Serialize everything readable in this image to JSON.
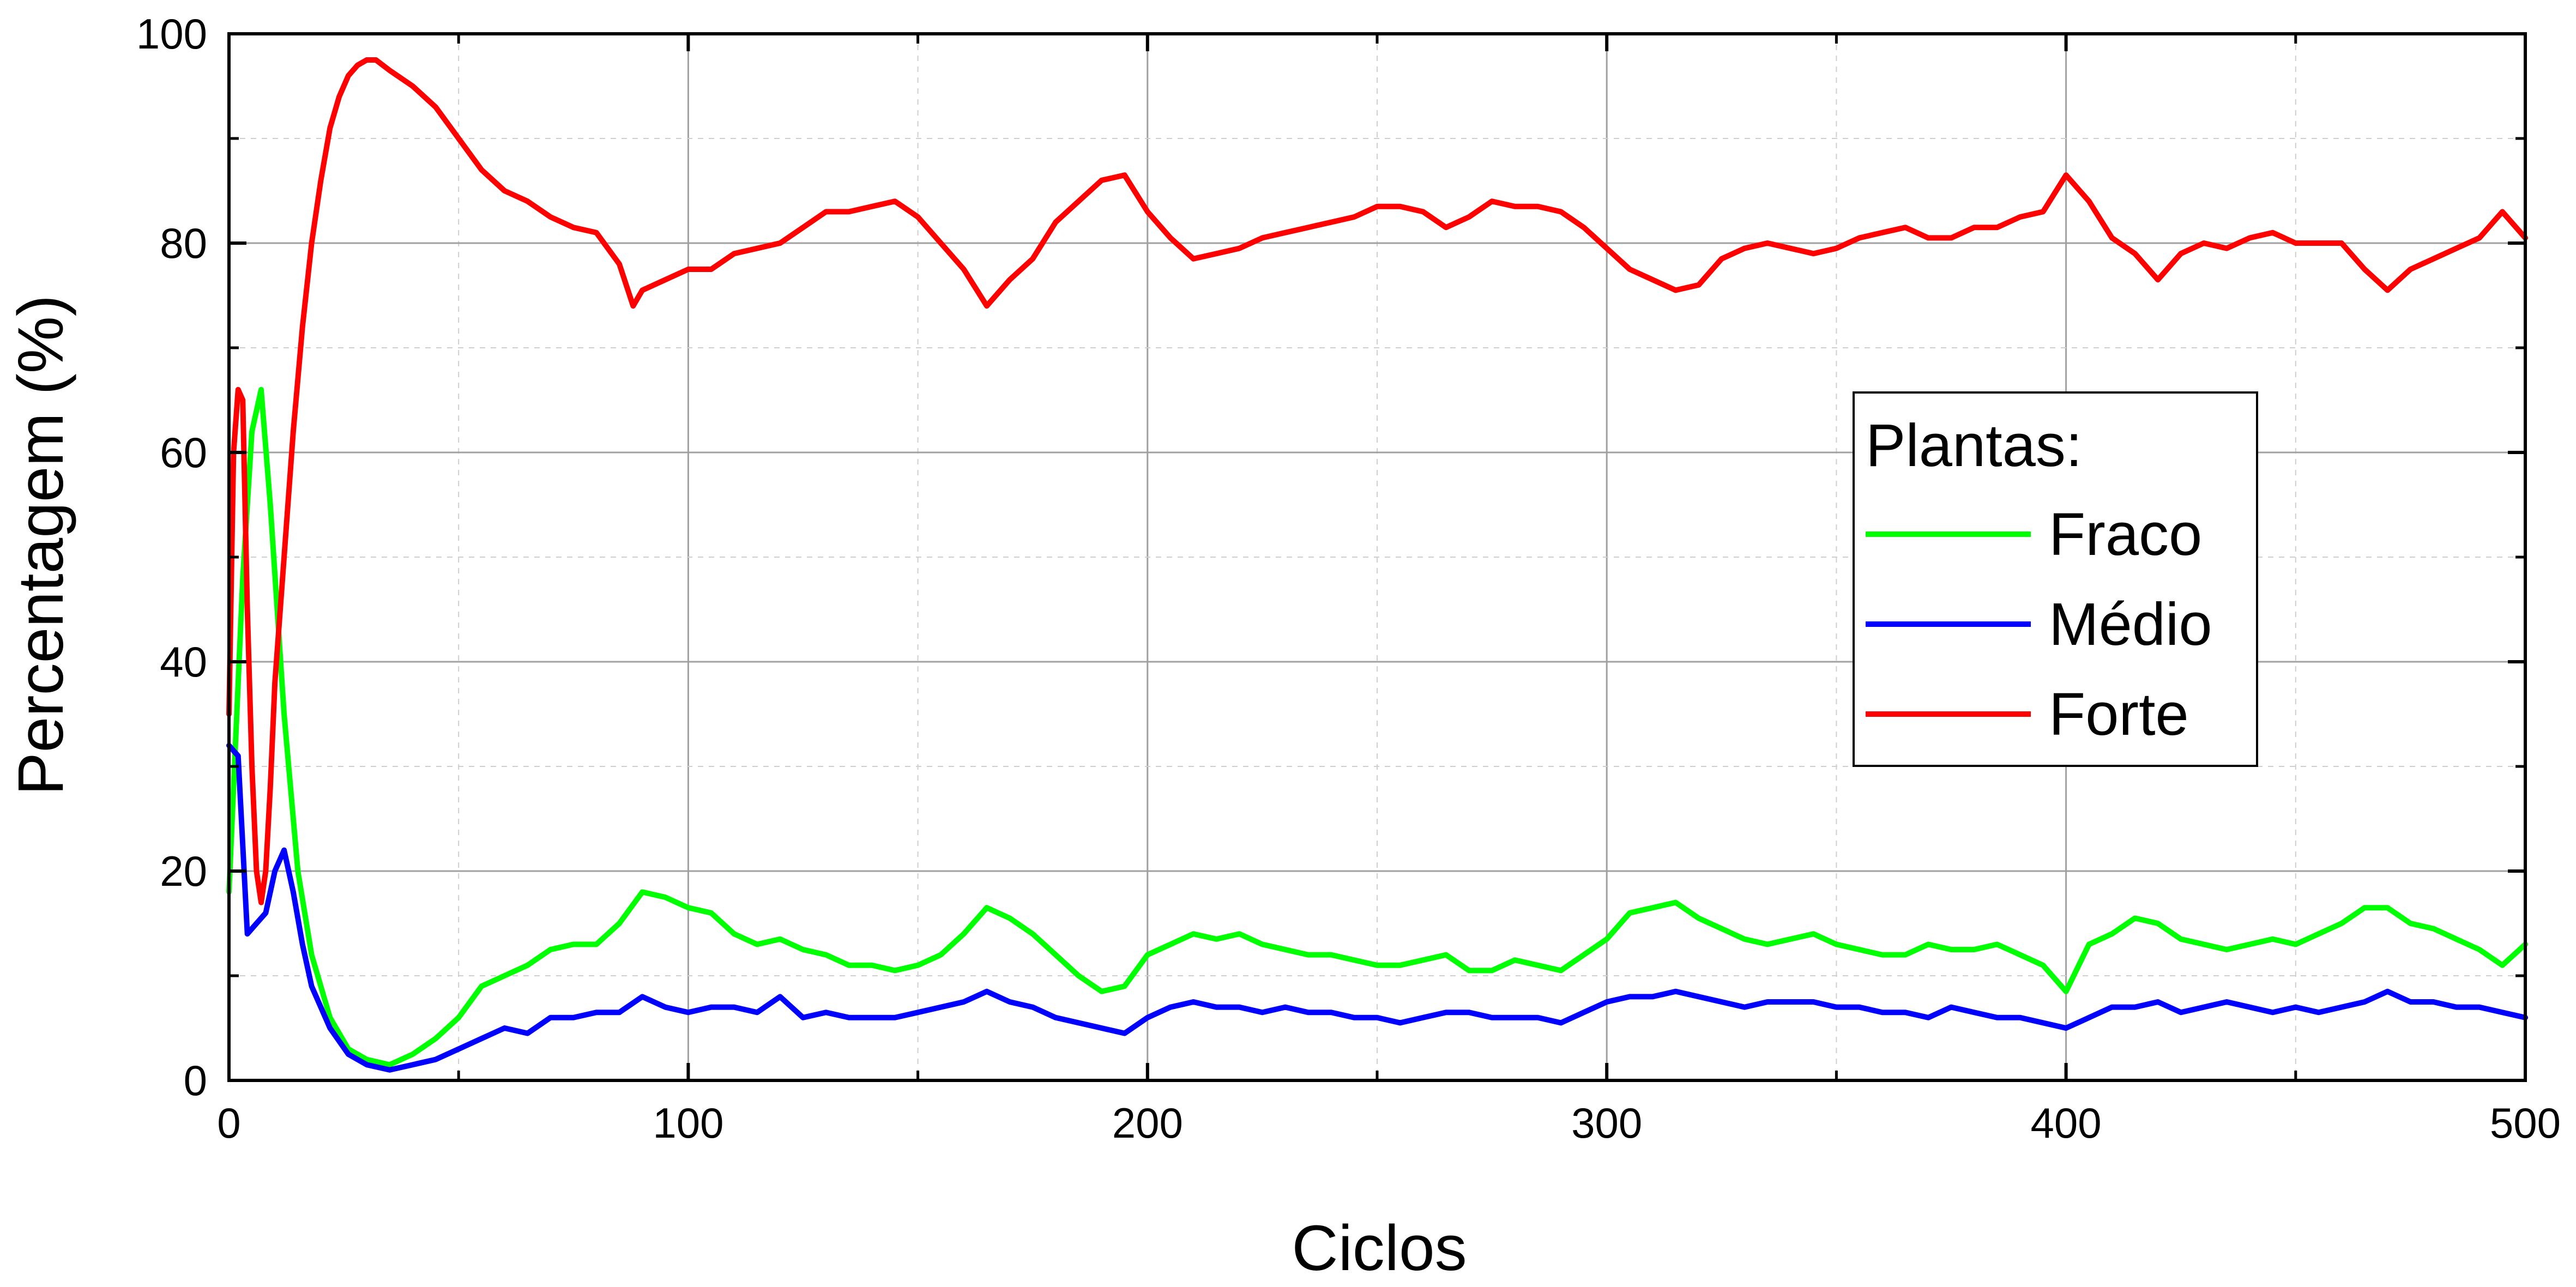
{
  "chart_data": {
    "type": "line",
    "xlabel": "Ciclos",
    "ylabel": "Percentagem (%)",
    "xlim": [
      0,
      500
    ],
    "ylim": [
      0,
      100
    ],
    "x_ticks": [
      0,
      100,
      200,
      300,
      400,
      500
    ],
    "y_ticks": [
      0,
      20,
      40,
      60,
      80,
      100
    ],
    "grid": true,
    "legend": {
      "title": "Plantas:",
      "placement": "right-center"
    },
    "series": [
      {
        "name": "Fraco",
        "color": "#00ff00",
        "x": [
          0,
          3,
          5,
          7,
          9,
          12,
          15,
          18,
          22,
          26,
          30,
          35,
          40,
          45,
          50,
          55,
          60,
          65,
          70,
          75,
          80,
          85,
          90,
          95,
          100,
          105,
          110,
          115,
          120,
          125,
          130,
          135,
          140,
          145,
          150,
          155,
          160,
          165,
          170,
          175,
          180,
          185,
          190,
          195,
          200,
          205,
          210,
          215,
          220,
          225,
          230,
          235,
          240,
          245,
          250,
          255,
          260,
          265,
          270,
          275,
          280,
          285,
          290,
          295,
          300,
          305,
          310,
          315,
          320,
          325,
          330,
          335,
          340,
          345,
          350,
          355,
          360,
          365,
          370,
          375,
          380,
          385,
          390,
          395,
          400,
          405,
          410,
          415,
          420,
          425,
          430,
          435,
          440,
          445,
          450,
          455,
          460,
          465,
          470,
          475,
          480,
          485,
          490,
          495,
          500
        ],
        "y": [
          18,
          48,
          62,
          66,
          55,
          35,
          20,
          12,
          6,
          3,
          2,
          1.5,
          2.5,
          4,
          6,
          9,
          10,
          11,
          12.5,
          13,
          13,
          15,
          18,
          17.5,
          16.5,
          16,
          14,
          13,
          13.5,
          12.5,
          12,
          11,
          11,
          10.5,
          11,
          12,
          14,
          16.5,
          15.5,
          14,
          12,
          10,
          8.5,
          9,
          12,
          13,
          14,
          13.5,
          14,
          13,
          12.5,
          12,
          12,
          11.5,
          11,
          11,
          11.5,
          12,
          10.5,
          10.5,
          11.5,
          11,
          10.5,
          12,
          13.5,
          16,
          16.5,
          17,
          15.5,
          14.5,
          13.5,
          13,
          13.5,
          14,
          13,
          12.5,
          12,
          12,
          13,
          12.5,
          12.5,
          13,
          12,
          11,
          8.5,
          13,
          14,
          15.5,
          15,
          13.5,
          13,
          12.5,
          13,
          13.5,
          13,
          14,
          15,
          16.5,
          16.5,
          15,
          14.5,
          13.5,
          12.5,
          11,
          13
        ]
      },
      {
        "name": "Médio",
        "color": "#0000ff",
        "x": [
          0,
          2,
          4,
          6,
          8,
          10,
          12,
          14,
          16,
          18,
          22,
          26,
          30,
          35,
          40,
          45,
          50,
          55,
          60,
          65,
          70,
          75,
          80,
          85,
          90,
          95,
          100,
          105,
          110,
          115,
          120,
          125,
          130,
          135,
          140,
          145,
          150,
          155,
          160,
          165,
          170,
          175,
          180,
          185,
          190,
          195,
          200,
          205,
          210,
          215,
          220,
          225,
          230,
          235,
          240,
          245,
          250,
          255,
          260,
          265,
          270,
          275,
          280,
          285,
          290,
          295,
          300,
          305,
          310,
          315,
          320,
          325,
          330,
          335,
          340,
          345,
          350,
          355,
          360,
          365,
          370,
          375,
          380,
          385,
          390,
          395,
          400,
          405,
          410,
          415,
          420,
          425,
          430,
          435,
          440,
          445,
          450,
          455,
          460,
          465,
          470,
          475,
          480,
          485,
          490,
          495,
          500
        ],
        "y": [
          32,
          31,
          14,
          15,
          16,
          20,
          22,
          18,
          13,
          9,
          5,
          2.5,
          1.5,
          1,
          1.5,
          2,
          3,
          4,
          5,
          4.5,
          6,
          6,
          6.5,
          6.5,
          8,
          7,
          6.5,
          7,
          7,
          6.5,
          8,
          6,
          6.5,
          6,
          6,
          6,
          6.5,
          7,
          7.5,
          8.5,
          7.5,
          7,
          6,
          5.5,
          5,
          4.5,
          6,
          7,
          7.5,
          7,
          7,
          6.5,
          7,
          6.5,
          6.5,
          6,
          6,
          5.5,
          6,
          6.5,
          6.5,
          6,
          6,
          6,
          5.5,
          6.5,
          7.5,
          8,
          8,
          8.5,
          8,
          7.5,
          7,
          7.5,
          7.5,
          7.5,
          7,
          7,
          6.5,
          6.5,
          6,
          7,
          6.5,
          6,
          6,
          5.5,
          5,
          6,
          7,
          7,
          7.5,
          6.5,
          7,
          7.5,
          7,
          6.5,
          7,
          6.5,
          7,
          7.5,
          8.5,
          7.5,
          7.5,
          7,
          7,
          6.5,
          6
        ]
      },
      {
        "name": "Forte",
        "color": "#ff0000",
        "x": [
          0,
          1,
          2,
          3,
          4,
          5,
          6,
          7,
          8,
          9,
          10,
          12,
          14,
          16,
          18,
          20,
          22,
          24,
          26,
          28,
          30,
          32,
          35,
          40,
          45,
          50,
          55,
          60,
          65,
          70,
          75,
          80,
          85,
          88,
          90,
          95,
          100,
          105,
          110,
          115,
          120,
          125,
          130,
          135,
          140,
          145,
          150,
          155,
          160,
          165,
          170,
          175,
          180,
          185,
          190,
          195,
          200,
          205,
          210,
          215,
          220,
          225,
          230,
          235,
          240,
          245,
          250,
          255,
          260,
          265,
          270,
          275,
          280,
          285,
          290,
          295,
          300,
          305,
          310,
          315,
          320,
          325,
          330,
          335,
          340,
          345,
          350,
          355,
          360,
          365,
          370,
          375,
          380,
          385,
          390,
          395,
          400,
          405,
          410,
          415,
          420,
          425,
          430,
          435,
          440,
          445,
          450,
          455,
          460,
          465,
          470,
          475,
          480,
          485,
          490,
          495,
          500
        ],
        "y": [
          35,
          60,
          66,
          65,
          45,
          30,
          20,
          17,
          20,
          28,
          38,
          50,
          62,
          72,
          80,
          86,
          91,
          94,
          96,
          97,
          97.5,
          97.5,
          96.5,
          95,
          93,
          90,
          87,
          85,
          84,
          82.5,
          81.5,
          81,
          78,
          74,
          75.5,
          76.5,
          77.5,
          77.5,
          79,
          79.5,
          80,
          81.5,
          83,
          83,
          83.5,
          84,
          82.5,
          80,
          77.5,
          74,
          76.5,
          78.5,
          82,
          84,
          86,
          86.5,
          83,
          80.5,
          78.5,
          79,
          79.5,
          80.5,
          81,
          81.5,
          82,
          82.5,
          83.5,
          83.5,
          83,
          81.5,
          82.5,
          84,
          83.5,
          83.5,
          83,
          81.5,
          79.5,
          77.5,
          76.5,
          75.5,
          76,
          78.5,
          79.5,
          80,
          79.5,
          79,
          79.5,
          80.5,
          81,
          81.5,
          80.5,
          80.5,
          81.5,
          81.5,
          82.5,
          83,
          86.5,
          84,
          80.5,
          79,
          76.5,
          79,
          80,
          79.5,
          80.5,
          81,
          80,
          80,
          80,
          77.5,
          75.5,
          77.5,
          78.5,
          79.5,
          80.5,
          83,
          80.5
        ]
      }
    ]
  }
}
